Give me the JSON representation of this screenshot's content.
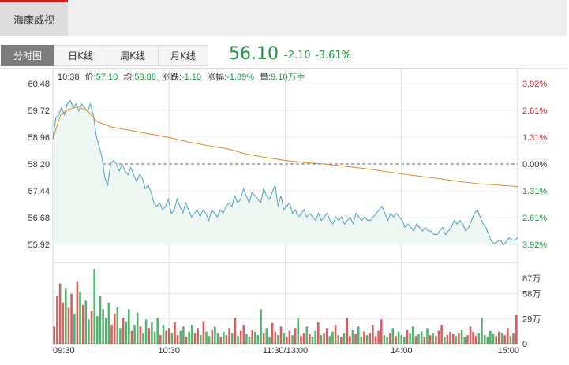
{
  "header": {
    "stock_name": "海康威视"
  },
  "tabs": [
    {
      "label": "分时图",
      "active": true
    },
    {
      "label": "日K线",
      "active": false
    },
    {
      "label": "周K线",
      "active": false
    },
    {
      "label": "月K线",
      "active": false
    }
  ],
  "quote": {
    "price": "56.10",
    "change": "-2.10",
    "change_pct": "-3.61%"
  },
  "info_bar": {
    "time": "10:38",
    "price_label": "价:",
    "price": "57.10",
    "avg_label": "均:",
    "avg": "58.88",
    "change_label": "涨跌:",
    "change": "-1.10",
    "pct_label": "涨幅:",
    "pct": "-1.89%",
    "vol_label": "量:",
    "vol": "9.10万手"
  },
  "colors": {
    "up": "#cc2a2a",
    "down": "#1b9a3f",
    "price_line": "#4aa3c8",
    "avg_line": "#e08a22",
    "fill": "#eef7f1"
  },
  "chart_data": {
    "type": "line",
    "prev_close": 58.2,
    "ylim": [
      55.92,
      60.48
    ],
    "y_ticks": [
      "60.48",
      "59.72",
      "58.96",
      "58.20",
      "57.44",
      "56.68",
      "55.92"
    ],
    "pct_ticks": [
      "3.92%",
      "2.61%",
      "1.31%",
      "0.00%",
      "1.31%",
      "2.61%",
      "3.92%"
    ],
    "x_ticks": [
      "09:30",
      "10:30",
      "11:30/13:00",
      "14:00",
      "15:00"
    ],
    "vol_ticks": [
      "87万",
      "58万",
      "29万",
      "0"
    ],
    "vol_max": 87,
    "price_series": [
      58.9,
      59.5,
      59.6,
      59.8,
      59.6,
      59.9,
      60.0,
      59.8,
      59.9,
      59.7,
      59.9,
      59.8,
      59.7,
      59.9,
      59.6,
      59.0,
      58.7,
      58.4,
      57.8,
      57.6,
      58.2,
      58.3,
      58.2,
      58.0,
      58.2,
      58.0,
      57.9,
      58.1,
      57.9,
      57.7,
      57.9,
      57.8,
      57.5,
      57.6,
      57.4,
      57.1,
      57.0,
      57.1,
      56.9,
      57.0,
      57.2,
      56.8,
      56.9,
      57.2,
      57.0,
      56.8,
      57.1,
      56.9,
      56.7,
      56.8,
      56.9,
      56.7,
      56.9,
      56.8,
      56.6,
      56.9,
      56.8,
      56.7,
      56.9,
      56.8,
      57.0,
      57.1,
      57.0,
      57.3,
      57.1,
      57.2,
      57.5,
      57.3,
      57.1,
      57.4,
      57.3,
      57.2,
      57.1,
      57.5,
      57.3,
      57.2,
      57.4,
      57.6,
      57.0,
      57.3,
      56.9,
      57.0,
      57.1,
      56.8,
      56.9,
      56.7,
      56.8,
      56.9,
      56.7,
      56.8,
      56.7,
      56.6,
      56.8,
      56.6,
      56.7,
      56.8,
      56.6,
      56.5,
      56.7,
      56.6,
      56.7,
      56.5,
      56.6,
      56.7,
      56.5,
      56.8,
      56.7,
      56.6,
      56.7,
      56.6,
      56.6,
      56.7,
      56.8,
      56.9,
      57.0,
      56.8,
      56.6,
      56.8,
      56.7,
      56.8,
      56.7,
      56.6,
      56.4,
      56.5,
      56.4,
      56.3,
      56.5,
      56.4,
      56.3,
      56.4,
      56.3,
      56.3,
      56.2,
      56.2,
      56.3,
      56.4,
      56.2,
      56.3,
      56.4,
      56.6,
      56.5,
      56.6,
      56.5,
      56.3,
      56.4,
      56.6,
      56.8,
      56.9,
      56.7,
      56.5,
      56.4,
      56.2,
      56.0,
      55.95,
      56.0,
      56.05,
      55.9,
      56.0,
      56.1,
      56.05,
      56.05,
      56.1
    ],
    "avg_series": [
      [
        0,
        58.9
      ],
      [
        4,
        59.6
      ],
      [
        8,
        59.75
      ],
      [
        13,
        59.82
      ],
      [
        18,
        59.7
      ],
      [
        23,
        59.4
      ],
      [
        30,
        59.25
      ],
      [
        40,
        59.15
      ],
      [
        50,
        59.05
      ],
      [
        60,
        58.95
      ],
      [
        70,
        58.82
      ],
      [
        80,
        58.72
      ],
      [
        90,
        58.63
      ],
      [
        100,
        58.48
      ],
      [
        110,
        58.38
      ],
      [
        120,
        58.3
      ],
      [
        130,
        58.24
      ],
      [
        140,
        58.2
      ],
      [
        150,
        58.14
      ],
      [
        160,
        58.08
      ],
      [
        170,
        58.0
      ],
      [
        180,
        57.92
      ],
      [
        190,
        57.85
      ],
      [
        200,
        57.78
      ],
      [
        210,
        57.7
      ],
      [
        220,
        57.64
      ],
      [
        230,
        57.6
      ],
      [
        240,
        57.56
      ]
    ],
    "volume_series": [
      20,
      55,
      70,
      48,
      65,
      42,
      58,
      35,
      72,
      60,
      45,
      50,
      28,
      38,
      87,
      32,
      55,
      40,
      30,
      48,
      22,
      35,
      42,
      18,
      30,
      26,
      40,
      15,
      22,
      36,
      20,
      12,
      28,
      18,
      25,
      14,
      30,
      10,
      22,
      15,
      18,
      12,
      25,
      10,
      15,
      20,
      8,
      14,
      22,
      12,
      18,
      10,
      26,
      14,
      9,
      16,
      20,
      12,
      8,
      14,
      10,
      18,
      12,
      30,
      9,
      15,
      22,
      11,
      8,
      16,
      14,
      10,
      40,
      12,
      18,
      8,
      24,
      14,
      10,
      20,
      12,
      8,
      15,
      10,
      18,
      30,
      9,
      12,
      20,
      11,
      8,
      15,
      25,
      10,
      12,
      18,
      9,
      14,
      22,
      10,
      8,
      12,
      30,
      9,
      16,
      11,
      20,
      8,
      14,
      10,
      12,
      22,
      9,
      15,
      28,
      10,
      8,
      12,
      18,
      9,
      14,
      10,
      8,
      16,
      12,
      20,
      9,
      11,
      14,
      8,
      18,
      10,
      12,
      9,
      15,
      22,
      8,
      10,
      14,
      11,
      9,
      12,
      16,
      8,
      10,
      20,
      14,
      9,
      12,
      30,
      10,
      8,
      15,
      11,
      9,
      14,
      12,
      10,
      18,
      9,
      12,
      33
    ]
  }
}
